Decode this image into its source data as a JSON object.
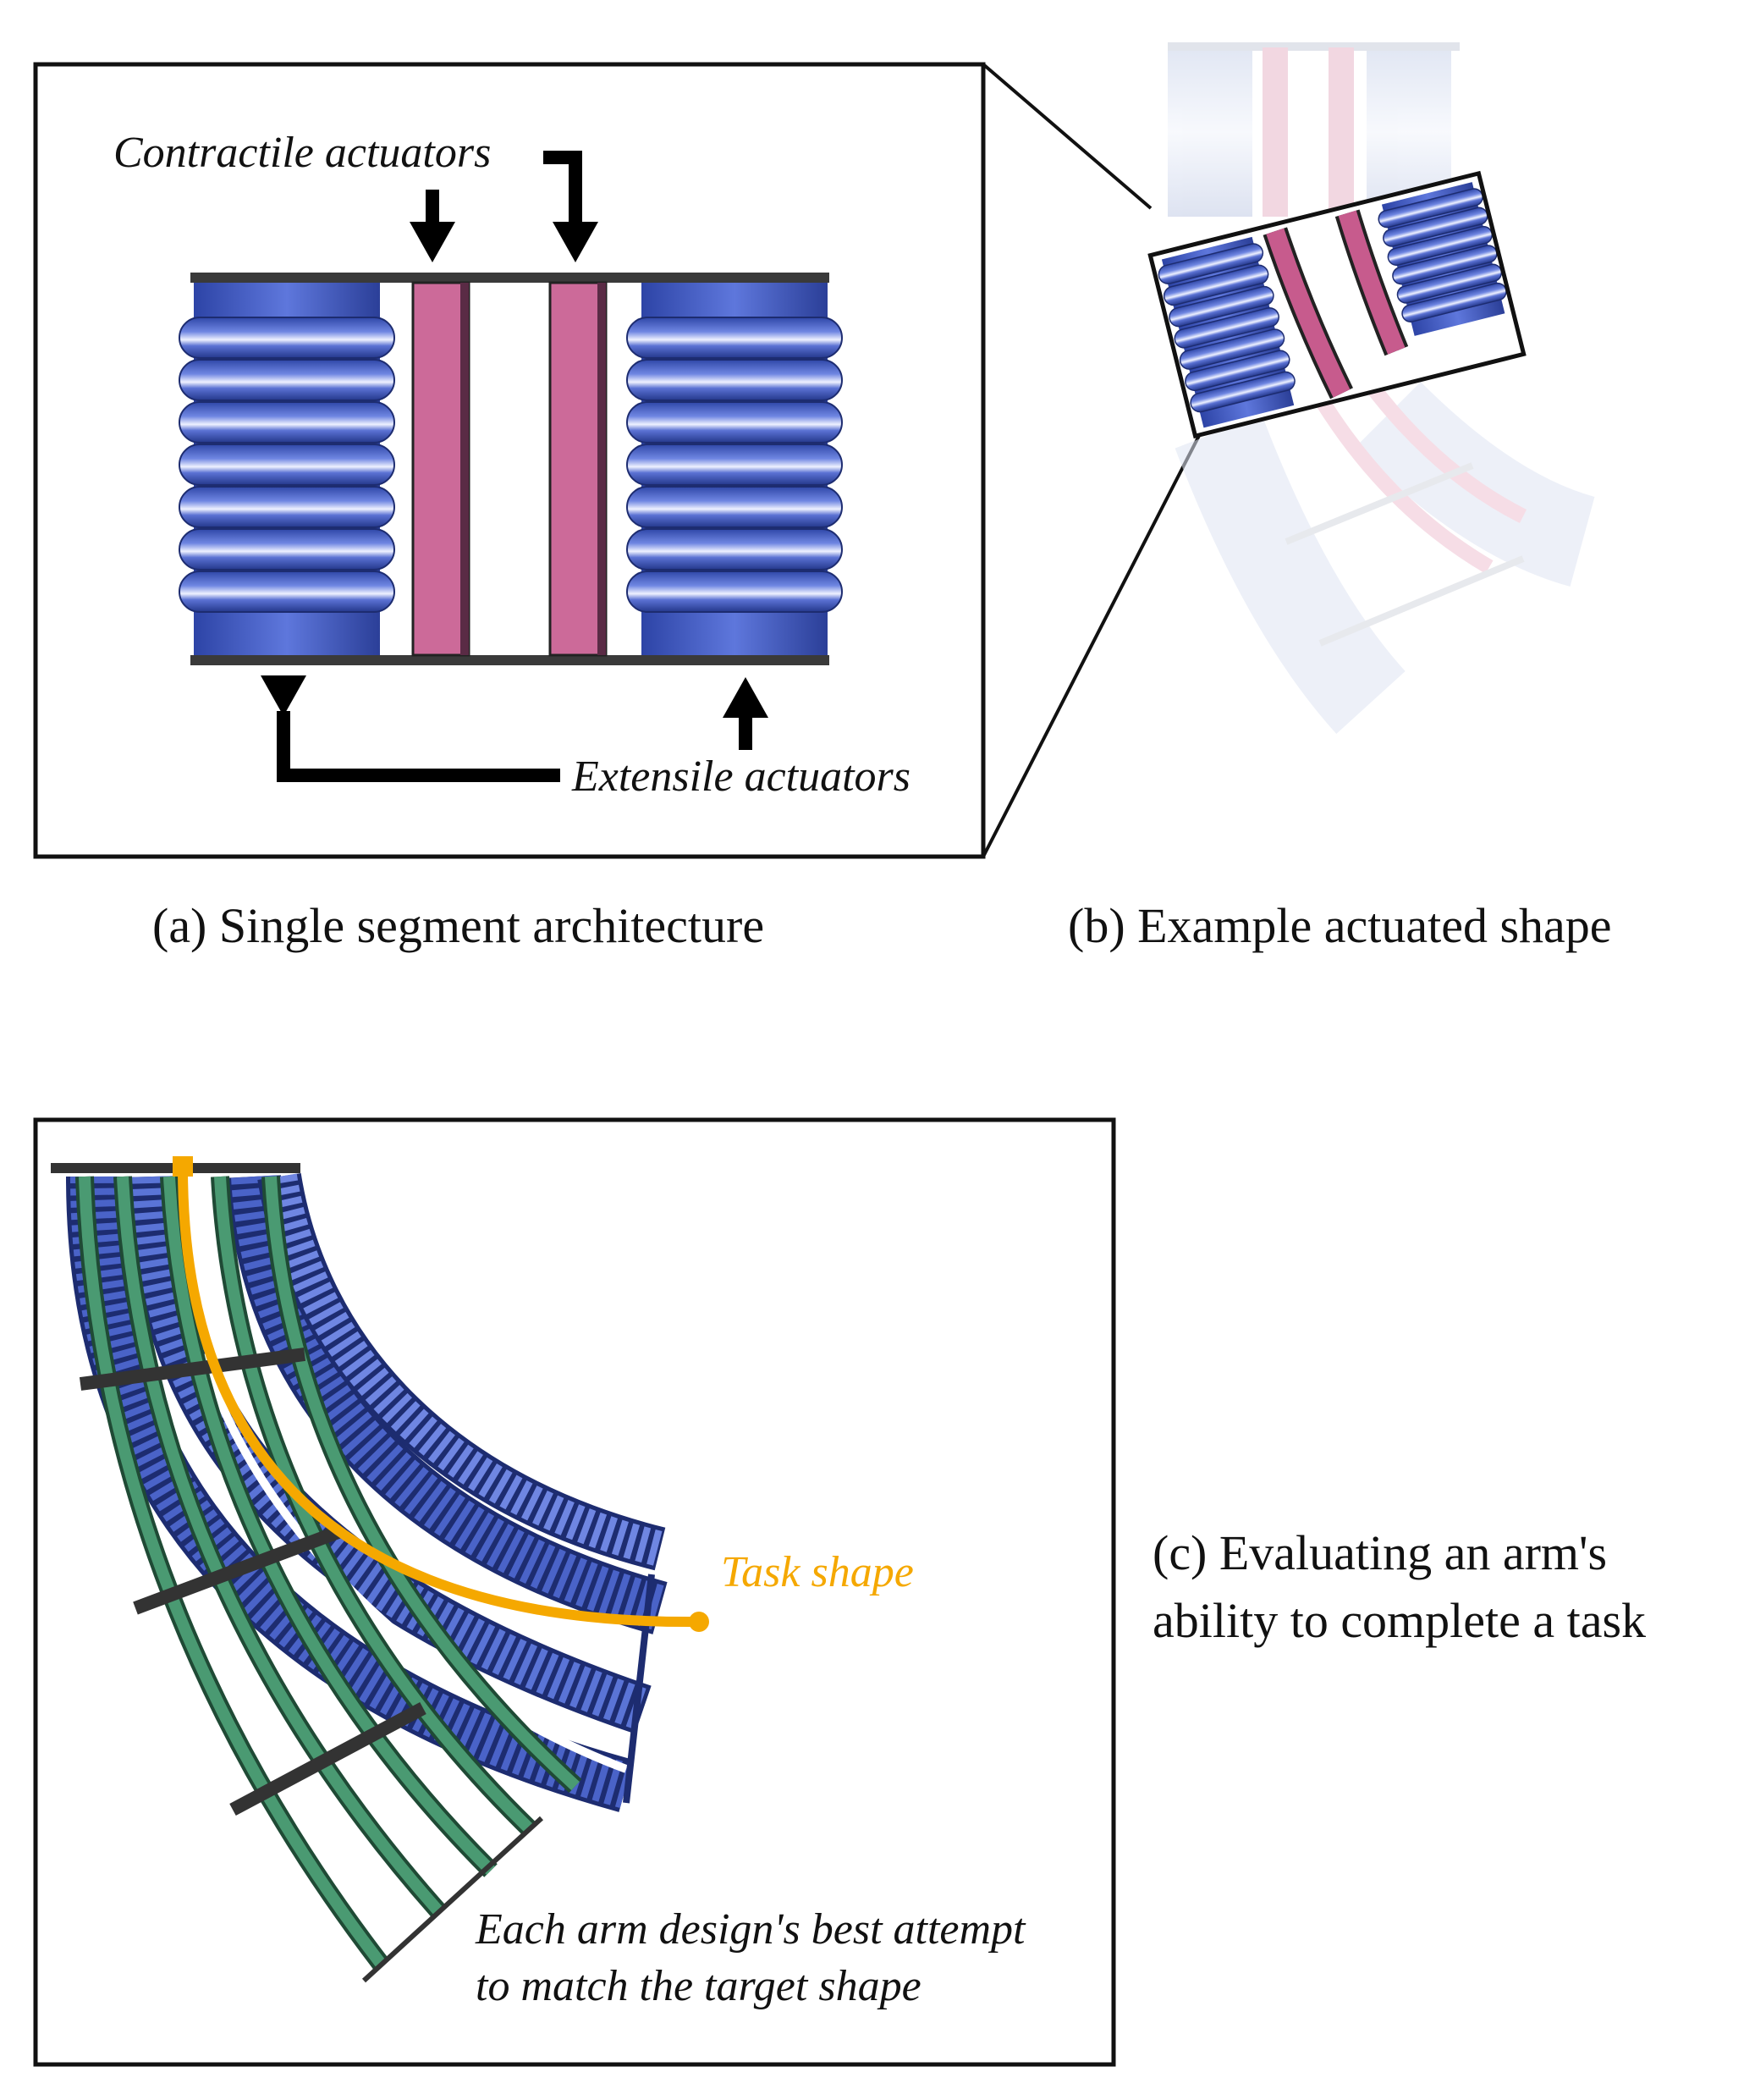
{
  "panel_a": {
    "contractile_label": "Contractile actuators",
    "extensile_label": "Extensile actuators",
    "caption": "(a) Single segment architecture"
  },
  "panel_b": {
    "caption": "(b) Example actuated shape"
  },
  "panel_c": {
    "task_label": "Task shape",
    "attempt_label_line1": "Each arm design's best attempt",
    "attempt_label_line2": "to match the target shape",
    "caption_line1": "(c) Evaluating an arm's",
    "caption_line2": "ability to complete a task"
  },
  "colors": {
    "extensile_actuator": "#4a63c8",
    "contractile_actuator": "#cc6a99",
    "arm_attempt": "#4a9a72",
    "task_shape": "#f5a800",
    "frame": "#111111"
  }
}
